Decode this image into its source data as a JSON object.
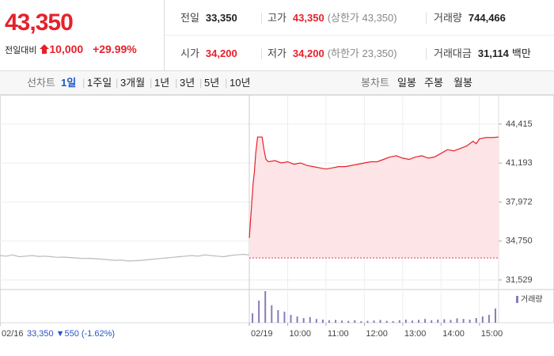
{
  "header": {
    "price": "43,350",
    "change_label": "전일대비",
    "change": "10,000",
    "rate": "+29.99%",
    "stats": [
      [
        {
          "label": "전일",
          "value": "33,350"
        },
        {
          "label": "고가",
          "value": "43,350",
          "note": "(상한가 43,350)"
        },
        {
          "label": "거래량",
          "value": "744,466"
        }
      ],
      [
        {
          "label": "시가",
          "value": "34,200"
        },
        {
          "label": "저가",
          "value": "34,200",
          "note": "(하한가 23,350)"
        },
        {
          "label": "거래대금",
          "value": "31,114",
          "unit": "백만"
        }
      ]
    ]
  },
  "tabs": {
    "line_label": "선차트",
    "periods": [
      "1일",
      "1주일",
      "3개월",
      "1년",
      "3년",
      "5년",
      "10년"
    ],
    "selected": 0,
    "candle_label": "봉차트",
    "candles": [
      "일봉",
      "주봉",
      "월봉"
    ]
  },
  "footer": {
    "price": "33,350",
    "change": "▼550",
    "rate": "(-1.62%)"
  },
  "chart_data": {
    "type": "line",
    "xlim": [
      0,
      780
    ],
    "xticks": [
      {
        "value": 0,
        "label": "02/16"
      },
      {
        "value": 390,
        "label": "02/19"
      },
      {
        "value": 450,
        "label": "10:00"
      },
      {
        "value": 510,
        "label": "11:00"
      },
      {
        "value": 570,
        "label": "12:00"
      },
      {
        "value": 630,
        "label": "13:00"
      },
      {
        "value": 690,
        "label": "14:00"
      },
      {
        "value": 750,
        "label": "15:00"
      }
    ],
    "ylim": [
      31000,
      46500
    ],
    "yticks": [
      {
        "value": 44415,
        "label": "44,415"
      },
      {
        "value": 41193,
        "label": "41,193"
      },
      {
        "value": 37972,
        "label": "37,972"
      },
      {
        "value": 34750,
        "label": "34,750"
      },
      {
        "value": 31529,
        "label": "31,529"
      }
    ],
    "prev_close": 33350,
    "grid": true,
    "series": [
      {
        "color": "#bbbbbb",
        "x": [
          0,
          10,
          20,
          30,
          40,
          50,
          60,
          70,
          80,
          90,
          100,
          110,
          120,
          130,
          140,
          150,
          160,
          170,
          180,
          190,
          200,
          210,
          220,
          230,
          240,
          250,
          260,
          270,
          280,
          290,
          300,
          310,
          320,
          330,
          340,
          350,
          360,
          370,
          380,
          390
        ],
        "values": [
          33550,
          33500,
          33600,
          33450,
          33500,
          33550,
          33480,
          33500,
          33450,
          33400,
          33420,
          33380,
          33350,
          33300,
          33320,
          33280,
          33250,
          33200,
          33150,
          33180,
          33100,
          33120,
          33150,
          33200,
          33250,
          33300,
          33350,
          33400,
          33450,
          33500,
          33550,
          33500,
          33600,
          33550,
          33500,
          33450,
          33550,
          33600,
          33650,
          33600
        ]
      },
      {
        "color": "#e6212b",
        "area": "#fde4e6",
        "x": [
          390,
          392,
          394,
          396,
          398,
          400,
          403,
          406,
          410,
          413,
          416,
          420,
          430,
          440,
          450,
          460,
          470,
          480,
          490,
          500,
          510,
          520,
          530,
          540,
          550,
          560,
          570,
          580,
          590,
          600,
          610,
          620,
          630,
          640,
          650,
          660,
          670,
          680,
          690,
          700,
          710,
          720,
          730,
          740,
          745,
          750,
          760,
          770,
          780
        ],
        "values": [
          35000,
          36500,
          38000,
          39500,
          40500,
          42000,
          43350,
          43350,
          43350,
          42300,
          41500,
          41300,
          41400,
          41200,
          41300,
          41100,
          41200,
          41000,
          40900,
          40800,
          40700,
          40800,
          40900,
          40900,
          41000,
          41100,
          41200,
          41300,
          41300,
          41500,
          41700,
          41800,
          41600,
          41500,
          41700,
          41800,
          41600,
          41700,
          42000,
          42300,
          42200,
          42400,
          42600,
          43000,
          42800,
          43200,
          43300,
          43300,
          43350
        ]
      }
    ],
    "volume": {
      "name": "거래량",
      "color": "#8a7bb8",
      "ylim": [
        0,
        100
      ],
      "x": [
        395,
        405,
        415,
        425,
        435,
        445,
        455,
        465,
        475,
        485,
        495,
        505,
        515,
        525,
        535,
        545,
        555,
        565,
        575,
        585,
        595,
        605,
        615,
        625,
        635,
        645,
        655,
        665,
        675,
        685,
        695,
        705,
        715,
        725,
        735,
        745,
        755,
        765,
        775
      ],
      "values": [
        30,
        70,
        100,
        55,
        40,
        35,
        25,
        20,
        15,
        18,
        12,
        10,
        8,
        9,
        7,
        6,
        8,
        5,
        6,
        7,
        9,
        6,
        5,
        8,
        10,
        7,
        9,
        12,
        8,
        10,
        11,
        9,
        14,
        12,
        10,
        15,
        20,
        25,
        45
      ]
    }
  }
}
